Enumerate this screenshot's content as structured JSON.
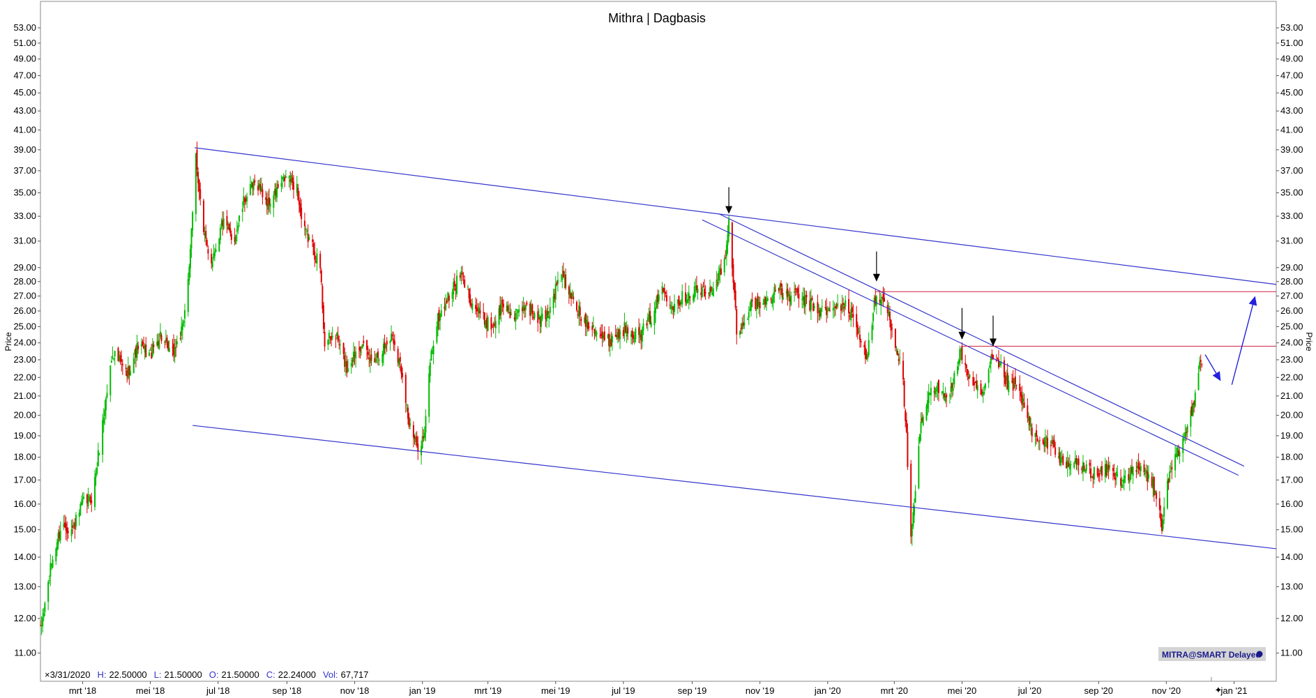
{
  "chart_data": {
    "type": "candlestick",
    "title": "Mithra | Dagbasis",
    "ylabel": "Price",
    "y_scale": "log",
    "ylim": [
      10.8,
      54.5
    ],
    "xlim": [
      "2018-01-22",
      "2021-02-08"
    ],
    "y_ticks": [
      11,
      12,
      13,
      14,
      15,
      16,
      17,
      18,
      19,
      20,
      21,
      22,
      23,
      24,
      25,
      26,
      27,
      28,
      29,
      31,
      33,
      35,
      37,
      39,
      41,
      43,
      45,
      47,
      49,
      51,
      53
    ],
    "y_tick_labels": [
      "11.00",
      "12.00",
      "13.00",
      "14.00",
      "15.00",
      "16.00",
      "17.00",
      "18.00",
      "19.00",
      "20.00",
      "21.00",
      "22.00",
      "23.00",
      "24.00",
      "25.00",
      "26.00",
      "27.00",
      "28.00",
      "29.00",
      "31.00",
      "33.00",
      "35.00",
      "37.00",
      "39.00",
      "41.00",
      "43.00",
      "45.00",
      "47.00",
      "49.00",
      "51.00",
      "53.00"
    ],
    "x_ticks": [
      {
        "date": "2018-03-01",
        "label": "mrt '18"
      },
      {
        "date": "2018-05-01",
        "label": "mei '18"
      },
      {
        "date": "2018-07-01",
        "label": "jul '18"
      },
      {
        "date": "2018-09-01",
        "label": "sep '18"
      },
      {
        "date": "2018-11-01",
        "label": "nov '18"
      },
      {
        "date": "2019-01-01",
        "label": "jan '19"
      },
      {
        "date": "2019-03-01",
        "label": "mrt '19"
      },
      {
        "date": "2019-05-01",
        "label": "mei '19"
      },
      {
        "date": "2019-07-01",
        "label": "jul '19"
      },
      {
        "date": "2019-09-01",
        "label": "sep '19"
      },
      {
        "date": "2019-11-01",
        "label": "nov '19"
      },
      {
        "date": "2020-01-01",
        "label": "jan '20"
      },
      {
        "date": "2020-03-01",
        "label": "mrt '20"
      },
      {
        "date": "2020-05-01",
        "label": "mei '20"
      },
      {
        "date": "2020-07-01",
        "label": "jul '20"
      },
      {
        "date": "2020-09-01",
        "label": "sep '20"
      },
      {
        "date": "2020-11-01",
        "label": "nov '20"
      },
      {
        "date": "2021-01-01",
        "label": "jan '21"
      }
    ],
    "price_path": [
      [
        "2018-01-22",
        11.6
      ],
      [
        "2018-02-01",
        13.8
      ],
      [
        "2018-02-10",
        15.2
      ],
      [
        "2018-02-20",
        15.0
      ],
      [
        "2018-03-01",
        16.0
      ],
      [
        "2018-03-10",
        16.3
      ],
      [
        "2018-03-20",
        20.0
      ],
      [
        "2018-03-28",
        23.5
      ],
      [
        "2018-04-10",
        22.2
      ],
      [
        "2018-04-20",
        23.8
      ],
      [
        "2018-05-01",
        23.3
      ],
      [
        "2018-05-10",
        24.5
      ],
      [
        "2018-05-20",
        23.2
      ],
      [
        "2018-05-30",
        24.8
      ],
      [
        "2018-06-06",
        30.0
      ],
      [
        "2018-06-11",
        38.5
      ],
      [
        "2018-06-18",
        31.5
      ],
      [
        "2018-06-25",
        29.5
      ],
      [
        "2018-07-05",
        32.5
      ],
      [
        "2018-07-15",
        31.0
      ],
      [
        "2018-07-25",
        34.5
      ],
      [
        "2018-08-05",
        36.0
      ],
      [
        "2018-08-15",
        34.0
      ],
      [
        "2018-08-25",
        35.5
      ],
      [
        "2018-09-01",
        36.5
      ],
      [
        "2018-09-10",
        35.5
      ],
      [
        "2018-09-15",
        32.0
      ],
      [
        "2018-09-22",
        31.0
      ],
      [
        "2018-10-01",
        29.0
      ],
      [
        "2018-10-05",
        24.0
      ],
      [
        "2018-10-15",
        24.5
      ],
      [
        "2018-10-25",
        22.5
      ],
      [
        "2018-11-05",
        24.0
      ],
      [
        "2018-11-15",
        23.0
      ],
      [
        "2018-11-25",
        23.5
      ],
      [
        "2018-12-05",
        24.5
      ],
      [
        "2018-12-15",
        22.0
      ],
      [
        "2018-12-20",
        19.5
      ],
      [
        "2018-12-27",
        18.5
      ],
      [
        "2019-01-03",
        19.0
      ],
      [
        "2019-01-08",
        23.0
      ],
      [
        "2019-01-15",
        25.5
      ],
      [
        "2019-01-25",
        27.0
      ],
      [
        "2019-02-05",
        28.5
      ],
      [
        "2019-02-15",
        26.5
      ],
      [
        "2019-02-25",
        25.5
      ],
      [
        "2019-03-05",
        25.0
      ],
      [
        "2019-03-15",
        26.5
      ],
      [
        "2019-03-25",
        25.5
      ],
      [
        "2019-04-05",
        26.5
      ],
      [
        "2019-04-15",
        25.3
      ],
      [
        "2019-04-25",
        26.0
      ],
      [
        "2019-05-05",
        28.5
      ],
      [
        "2019-05-15",
        27.0
      ],
      [
        "2019-05-25",
        25.5
      ],
      [
        "2019-06-05",
        25.0
      ],
      [
        "2019-06-15",
        24.0
      ],
      [
        "2019-06-25",
        24.5
      ],
      [
        "2019-07-05",
        25.0
      ],
      [
        "2019-07-15",
        24.3
      ],
      [
        "2019-07-25",
        25.5
      ],
      [
        "2019-08-05",
        27.5
      ],
      [
        "2019-08-15",
        26.5
      ],
      [
        "2019-08-25",
        27.0
      ],
      [
        "2019-09-05",
        27.5
      ],
      [
        "2019-09-15",
        27.0
      ],
      [
        "2019-09-25",
        28.5
      ],
      [
        "2019-10-01",
        29.5
      ],
      [
        "2019-10-04",
        32.5
      ],
      [
        "2019-10-08",
        28.0
      ],
      [
        "2019-10-12",
        24.0
      ],
      [
        "2019-10-18",
        25.5
      ],
      [
        "2019-10-25",
        26.5
      ],
      [
        "2019-11-05",
        26.5
      ],
      [
        "2019-11-15",
        27.5
      ],
      [
        "2019-11-25",
        27.0
      ],
      [
        "2019-12-05",
        27.0
      ],
      [
        "2019-12-15",
        26.5
      ],
      [
        "2019-12-25",
        26.0
      ],
      [
        "2020-01-05",
        26.0
      ],
      [
        "2020-01-15",
        26.5
      ],
      [
        "2020-01-25",
        25.5
      ],
      [
        "2020-02-01",
        24.0
      ],
      [
        "2020-02-05",
        23.0
      ],
      [
        "2020-02-12",
        26.5
      ],
      [
        "2020-02-20",
        26.8
      ],
      [
        "2020-02-26",
        25.5
      ],
      [
        "2020-03-02",
        24.0
      ],
      [
        "2020-03-08",
        22.5
      ],
      [
        "2020-03-12",
        19.0
      ],
      [
        "2020-03-16",
        14.5
      ],
      [
        "2020-03-20",
        16.5
      ],
      [
        "2020-03-25",
        19.5
      ],
      [
        "2020-04-01",
        21.0
      ],
      [
        "2020-04-10",
        21.5
      ],
      [
        "2020-04-20",
        21.0
      ],
      [
        "2020-04-30",
        23.5
      ],
      [
        "2020-05-05",
        22.5
      ],
      [
        "2020-05-10",
        21.5
      ],
      [
        "2020-05-20",
        21.0
      ],
      [
        "2020-05-28",
        23.0
      ],
      [
        "2020-06-05",
        22.5
      ],
      [
        "2020-06-12",
        21.5
      ],
      [
        "2020-06-20",
        21.5
      ],
      [
        "2020-07-01",
        19.5
      ],
      [
        "2020-07-10",
        18.5
      ],
      [
        "2020-07-20",
        18.8
      ],
      [
        "2020-08-01",
        17.5
      ],
      [
        "2020-08-10",
        17.8
      ],
      [
        "2020-08-20",
        17.5
      ],
      [
        "2020-09-01",
        17.2
      ],
      [
        "2020-09-10",
        17.5
      ],
      [
        "2020-09-20",
        17.0
      ],
      [
        "2020-10-01",
        17.3
      ],
      [
        "2020-10-10",
        17.5
      ],
      [
        "2020-10-20",
        16.8
      ],
      [
        "2020-10-28",
        15.2
      ],
      [
        "2020-11-03",
        17.0
      ],
      [
        "2020-11-10",
        18.0
      ],
      [
        "2020-11-18",
        19.0
      ],
      [
        "2020-11-25",
        20.5
      ],
      [
        "2020-12-01",
        23.0
      ],
      [
        "2020-12-04",
        22.8
      ]
    ],
    "annotations": {
      "trend_lines": [
        {
          "from": [
            "2018-06-10",
            39.2
          ],
          "to": [
            "2021-02-08",
            27.8
          ],
          "color": "#3333cc"
        },
        {
          "from": [
            "2018-06-08",
            19.5
          ],
          "to": [
            "2021-02-08",
            14.3
          ],
          "color": "#3333cc"
        },
        {
          "from": [
            "2019-09-25",
            33.2
          ],
          "to": [
            "2021-01-10",
            17.6
          ],
          "color": "#3333cc"
        },
        {
          "from": [
            "2019-09-10",
            32.7
          ],
          "to": [
            "2021-01-05",
            17.2
          ],
          "color": "#3333cc"
        }
      ],
      "horizontal_lines": [
        {
          "from": "2020-02-13",
          "to": "2021-02-08",
          "y": 27.3,
          "color": "#cc2244"
        },
        {
          "from": "2020-04-30",
          "to": "2021-02-08",
          "y": 23.8,
          "color": "#cc2244"
        }
      ],
      "down_arrows": [
        {
          "date": "2019-10-04",
          "y_top": 35.5,
          "y_tip": 33.2
        },
        {
          "date": "2020-02-14",
          "y_top": 30.2,
          "y_tip": 28.0
        },
        {
          "date": "2020-05-01",
          "y_top": 26.2,
          "y_tip": 24.2
        },
        {
          "date": "2020-05-29",
          "y_top": 25.7,
          "y_tip": 23.8
        }
      ],
      "projection_arrows": [
        {
          "from": [
            "2020-12-06",
            23.3
          ],
          "to": [
            "2020-12-20",
            21.8
          ],
          "color": "#2222dd"
        },
        {
          "from": [
            "2020-12-30",
            21.6
          ],
          "to": [
            "2021-01-20",
            27.0
          ],
          "color": "#2222dd"
        }
      ]
    },
    "grid": false,
    "legend": "none"
  },
  "info_bar": {
    "date": "3/31/2020",
    "high_label": "H:",
    "high": "22.50000",
    "low_label": "L:",
    "low": "21.50000",
    "open_label": "O:",
    "open": "21.50000",
    "close_label": "C:",
    "close": "22.24000",
    "vol_label": "Vol:",
    "vol": "67,717"
  },
  "badge": "MITRA@SMART Delayed",
  "colors": {
    "up": "#00bb00",
    "down": "#dd0000",
    "trend": "#3333cc",
    "resistance": "#cc2244",
    "projection": "#2222dd",
    "badge_bg": "#d4d4d4"
  }
}
